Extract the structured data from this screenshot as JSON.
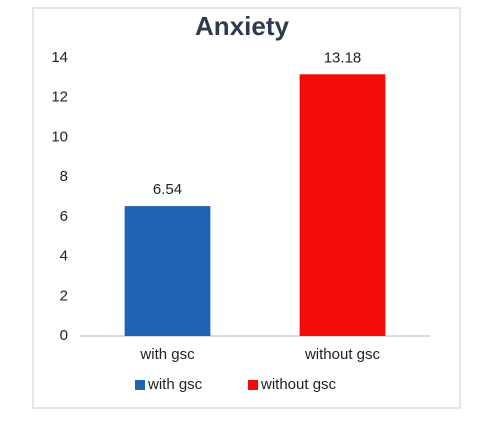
{
  "chart_data": {
    "type": "bar",
    "title": "Anxiety",
    "categories": [
      "with gsc",
      "without gsc"
    ],
    "series": [
      {
        "name": "with gsc",
        "color": "#1f63b4",
        "values": [
          6.54,
          null
        ]
      },
      {
        "name": "without gsc",
        "color": "#f50a0a",
        "values": [
          null,
          13.18
        ]
      }
    ],
    "ylim": [
      0,
      14
    ],
    "yticks": [
      0,
      2,
      4,
      6,
      8,
      10,
      12,
      14
    ],
    "grid": false,
    "legend": "bottom"
  }
}
